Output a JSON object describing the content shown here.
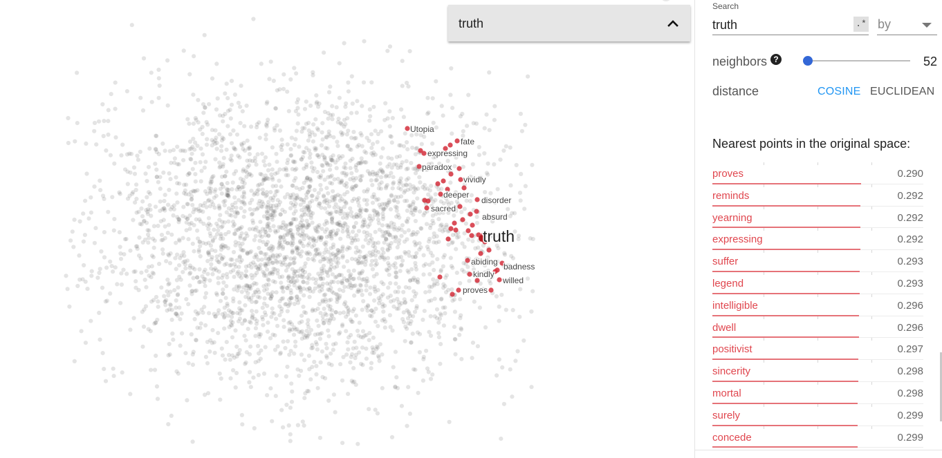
{
  "selected_point": {
    "label": "truth"
  },
  "projection": {
    "focus_label": "truth",
    "neighbor_color": "#d32f3c",
    "background_point_color": "#555555",
    "neighbor_labels": [
      "Utopia",
      "fate",
      "expressing",
      "paradox",
      "vividly",
      "deeper",
      "disorder",
      "sacred",
      "absurd",
      "abiding",
      "badness",
      "kindly",
      "willed",
      "proves"
    ]
  },
  "inspector": {
    "search": {
      "label": "Search",
      "value": "truth",
      "regex_label": ".*",
      "by_label": "by"
    },
    "neighbors": {
      "label": "neighbors",
      "value": "52",
      "help_icon": "question-mark-icon"
    },
    "distance": {
      "label": "distance",
      "options": [
        "COSINE",
        "EUCLIDEAN"
      ],
      "selected": "COSINE"
    },
    "nearest_title": "Nearest points in the original space:",
    "nearest": [
      {
        "word": "proves",
        "value": "0.290"
      },
      {
        "word": "reminds",
        "value": "0.292"
      },
      {
        "word": "yearning",
        "value": "0.292"
      },
      {
        "word": "expressing",
        "value": "0.292"
      },
      {
        "word": "suffer",
        "value": "0.293"
      },
      {
        "word": "legend",
        "value": "0.293"
      },
      {
        "word": "intelligible",
        "value": "0.296"
      },
      {
        "word": "dwell",
        "value": "0.296"
      },
      {
        "word": "positivist",
        "value": "0.297"
      },
      {
        "word": "sincerity",
        "value": "0.298"
      },
      {
        "word": "mortal",
        "value": "0.298"
      },
      {
        "word": "surely",
        "value": "0.299"
      },
      {
        "word": "concede",
        "value": "0.299"
      }
    ]
  }
}
